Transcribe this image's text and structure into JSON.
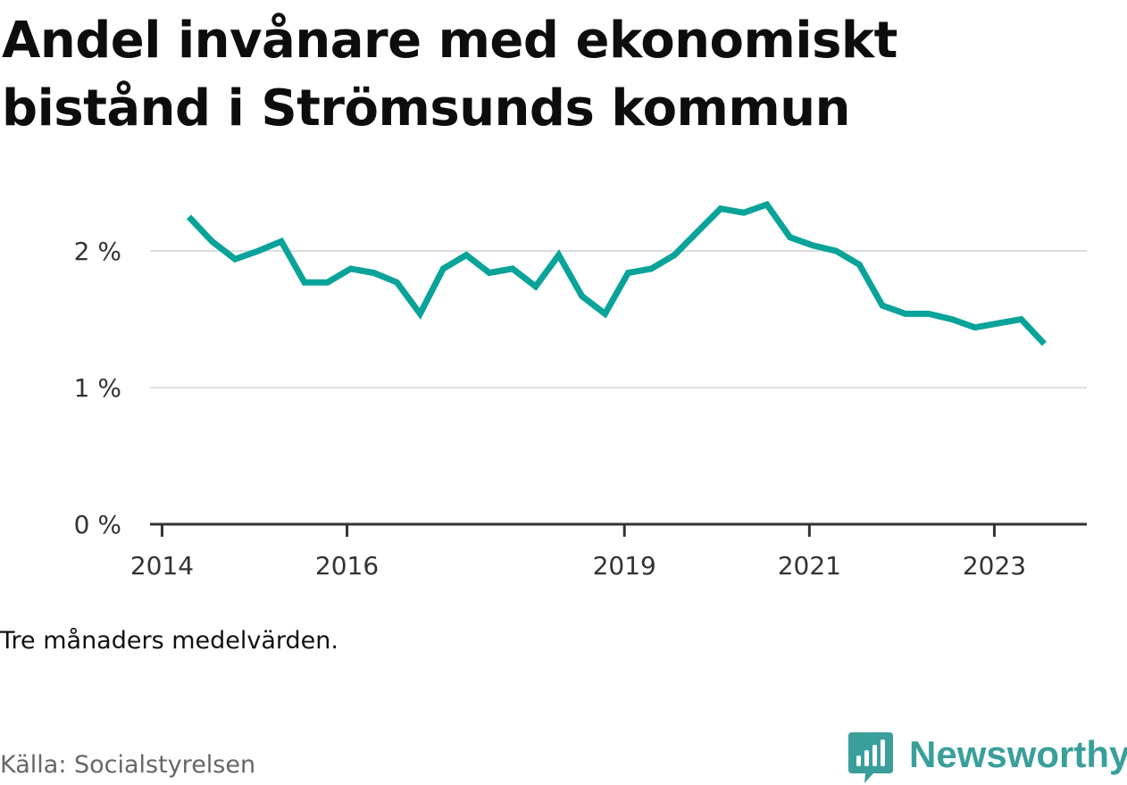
{
  "chart_data": {
    "type": "line",
    "title": "Andel invånare med ekonomiskt bistånd i Strömsunds kommun",
    "subtitle": "",
    "xlabel": "",
    "ylabel": "",
    "x_ticks": [
      "2014",
      "2016",
      "2019",
      "2021",
      "2023"
    ],
    "x_tick_positions": [
      2014.0,
      2016.0,
      2019.0,
      2021.0,
      2023.0
    ],
    "y_ticks": [
      "0 %",
      "1 %",
      "2 %"
    ],
    "y_tick_values": [
      0,
      1,
      2
    ],
    "ylim": [
      0,
      2.5
    ],
    "xlim": [
      2013.87,
      2024.0
    ],
    "grid": true,
    "series": [
      {
        "color": "#0aa39a",
        "x": [
          2014.29,
          2014.54,
          2014.79,
          2015.04,
          2015.29,
          2015.54,
          2015.79,
          2016.04,
          2016.29,
          2016.54,
          2016.79,
          2017.04,
          2017.29,
          2017.54,
          2017.79,
          2018.04,
          2018.29,
          2018.54,
          2018.79,
          2019.04,
          2019.29,
          2019.54,
          2019.79,
          2020.04,
          2020.29,
          2020.54,
          2020.79,
          2021.04,
          2021.29,
          2021.54,
          2021.79,
          2022.04,
          2022.29,
          2022.54,
          2022.79,
          2023.04,
          2023.29,
          2023.54
        ],
        "values": [
          2.25,
          2.07,
          1.94,
          2.0,
          2.07,
          1.77,
          1.77,
          1.87,
          1.84,
          1.77,
          1.54,
          1.87,
          1.97,
          1.84,
          1.87,
          1.74,
          1.97,
          1.67,
          1.54,
          1.84,
          1.87,
          1.97,
          2.14,
          2.31,
          2.28,
          2.34,
          2.1,
          2.04,
          2.0,
          1.9,
          1.6,
          1.54,
          1.54,
          1.5,
          1.44,
          1.47,
          1.5,
          1.32
        ]
      }
    ]
  },
  "note": "Tre månaders medelvärden.",
  "source": "Källa: Socialstyrelsen",
  "brand": {
    "name": "Newsworthy",
    "color": "#3a9f9a",
    "icon": "bar-chart-speech-bubble-icon"
  },
  "colors": {
    "line": "#0aa39a",
    "grid": "#dddddd",
    "axis": "#333333"
  }
}
